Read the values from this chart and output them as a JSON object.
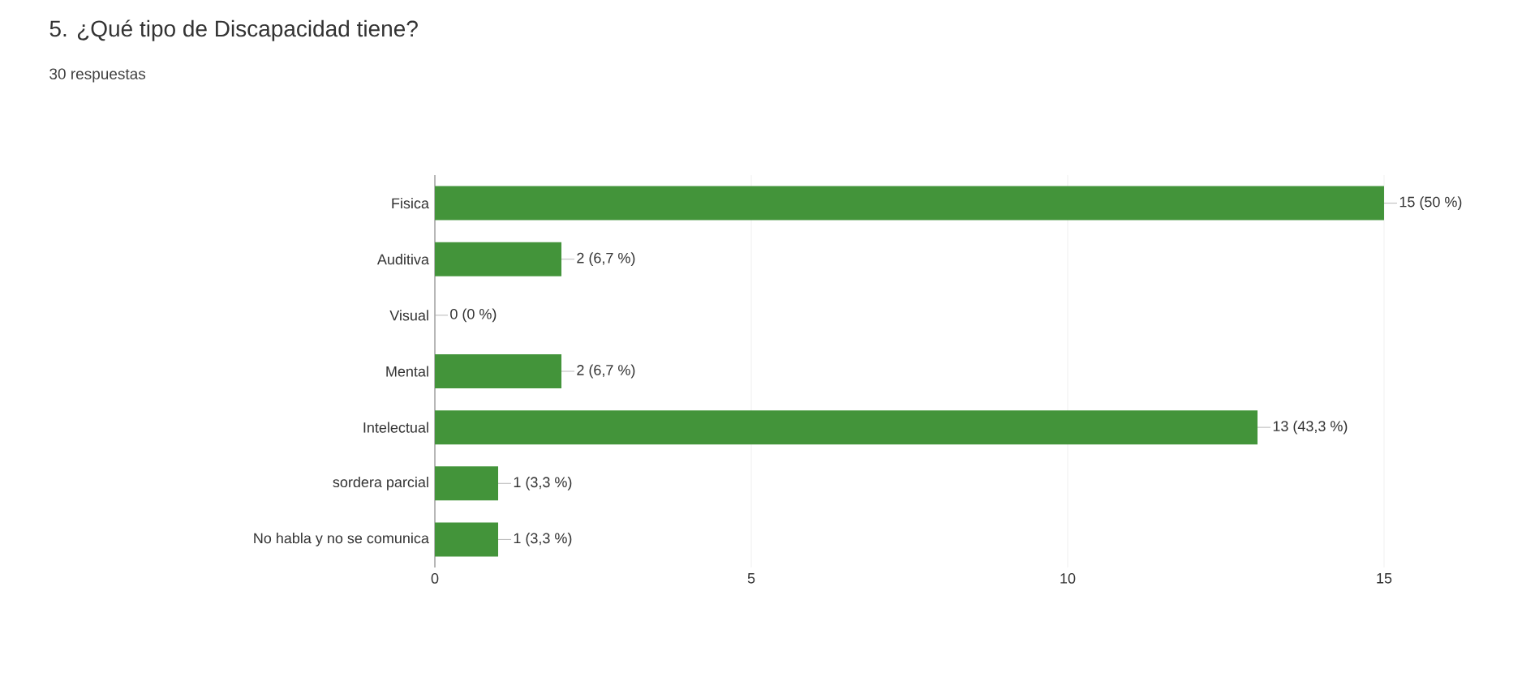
{
  "chart_data": {
    "type": "bar",
    "orientation": "horizontal",
    "title": "5. ¿Qué tipo de Discapacidad tiene?",
    "subtitle": "30 respuestas",
    "categories": [
      "Fisica",
      "Auditiva",
      "Visual",
      "Mental",
      "Intelectual",
      "sordera parcial",
      "No habla y no se comunica"
    ],
    "values": [
      15,
      2,
      0,
      2,
      13,
      1,
      1
    ],
    "value_labels": [
      "15 (50 %)",
      "2 (6,7 %)",
      "0 (0 %)",
      "2 (6,7 %)",
      "13 (43,3 %)",
      "1 (3,3 %)",
      "1 (3,3 %)"
    ],
    "color": "#43943a",
    "xlim": [
      0,
      15
    ],
    "xticks": [
      0,
      5,
      10,
      15
    ],
    "grid": "x"
  }
}
